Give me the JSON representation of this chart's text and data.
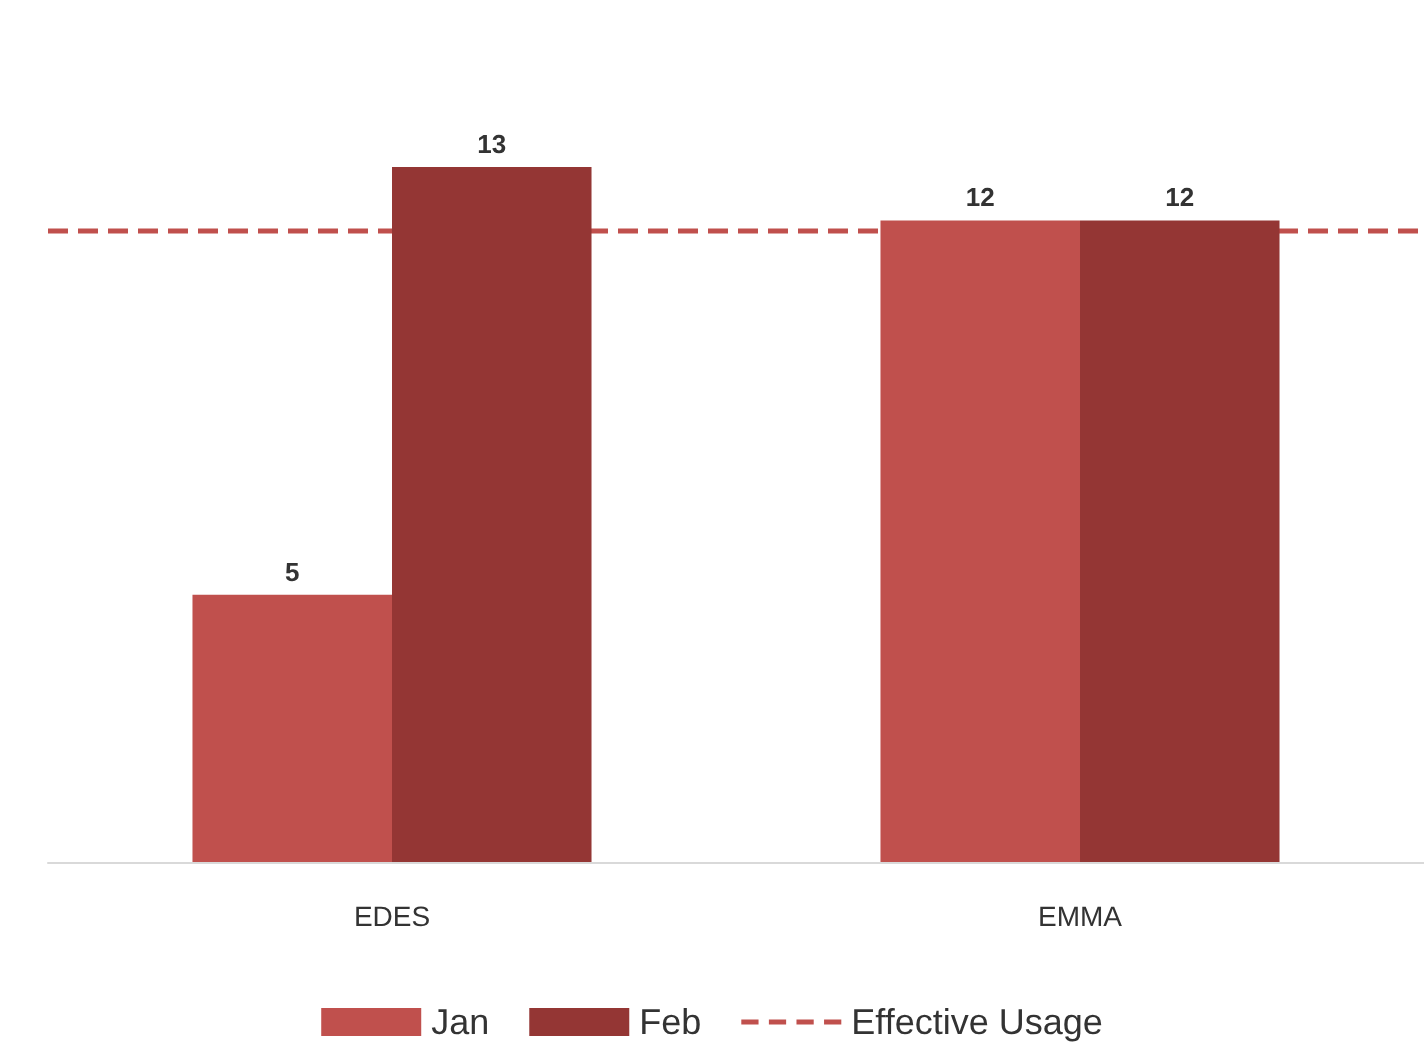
{
  "chart_data": {
    "type": "bar",
    "categories": [
      "EDES",
      "EMMA"
    ],
    "series": [
      {
        "name": "Jan",
        "color": "#c0504d",
        "values": [
          5,
          12
        ]
      },
      {
        "name": "Feb",
        "color": "#943634",
        "values": [
          13,
          12
        ]
      }
    ],
    "ref_lines": [
      {
        "axis": "y",
        "value": 11.8,
        "label": "Effective Usage",
        "color": "#c0504d",
        "line_style": "dashed"
      }
    ],
    "data_labels": true,
    "legend": "bottom"
  }
}
